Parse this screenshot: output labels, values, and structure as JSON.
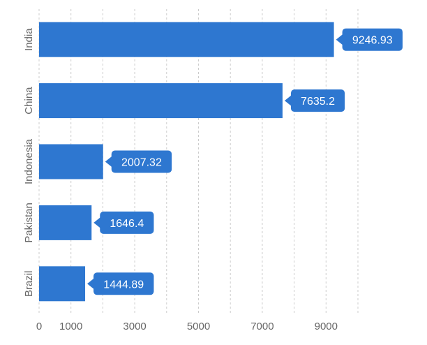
{
  "chart_data": {
    "type": "bar",
    "orientation": "horizontal",
    "categories": [
      "India",
      "China",
      "Indonesia",
      "Pakistan",
      "Brazil"
    ],
    "values": [
      9246.93,
      7635.2,
      2007.32,
      1646.4,
      1444.89
    ],
    "data_labels": [
      "9246.93",
      "7635.2",
      "2007.32",
      "1646.4",
      "1444.89"
    ],
    "x_ticks": [
      0,
      1000,
      3000,
      5000,
      7000,
      9000
    ],
    "x_gridlines": [
      0,
      1000,
      2000,
      3000,
      4000,
      5000,
      6000,
      7000,
      8000,
      9000,
      10000
    ],
    "xlim": [
      0,
      10000
    ],
    "grid": true,
    "legend": "none",
    "colors": {
      "bar": "#2e77d0",
      "label_bg": "#2e77d0",
      "grid": "#cccccc"
    }
  }
}
